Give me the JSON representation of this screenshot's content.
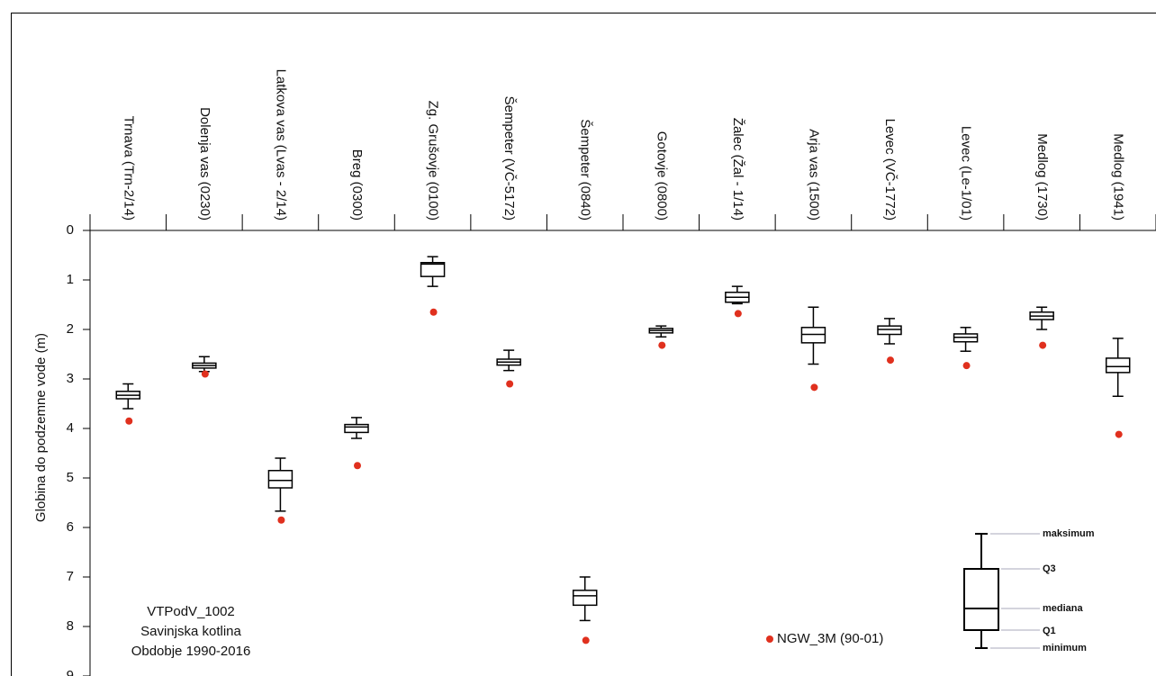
{
  "chart_data": {
    "type": "boxplot",
    "y_label": "Globina do podzemne vode (m)",
    "ylim": [
      0,
      9
    ],
    "yticks": [
      0,
      1,
      2,
      3,
      4,
      5,
      6,
      7,
      8,
      9
    ],
    "y_inverted": true,
    "categories": [
      "Trnava (Trn-2/14)",
      "Dolenja vas (0230)",
      "Latkova vas (Lvas - 2/14)",
      "Breg (0300)",
      "Zg. Grušovje (0100)",
      "Šempeter (VČ-5172)",
      "Šempeter (0840)",
      "Gotovje (0800)",
      "Žalec (Žal - 1/14)",
      "Arja vas (1500)",
      "Levec (VČ-1772)",
      "Levec (Le-1/01)",
      "Medlog (1730)",
      "Medlog (1941)"
    ],
    "boxes": [
      {
        "min": 3.1,
        "q1": 3.25,
        "median": 3.33,
        "q3": 3.4,
        "max": 3.6
      },
      {
        "min": 2.55,
        "q1": 2.68,
        "median": 2.73,
        "q3": 2.78,
        "max": 2.85
      },
      {
        "min": 4.6,
        "q1": 4.85,
        "median": 5.05,
        "q3": 5.2,
        "max": 5.67
      },
      {
        "min": 3.78,
        "q1": 3.92,
        "median": 3.97,
        "q3": 4.08,
        "max": 4.2
      },
      {
        "min": 0.53,
        "q1": 0.65,
        "median": 0.68,
        "q3": 0.93,
        "max": 1.13
      },
      {
        "min": 2.42,
        "q1": 2.6,
        "median": 2.66,
        "q3": 2.72,
        "max": 2.83
      },
      {
        "min": 7.0,
        "q1": 7.27,
        "median": 7.38,
        "q3": 7.57,
        "max": 7.88
      },
      {
        "min": 1.93,
        "q1": 1.98,
        "median": 2.02,
        "q3": 2.07,
        "max": 2.15
      },
      {
        "min": 1.13,
        "q1": 1.25,
        "median": 1.35,
        "q3": 1.45,
        "max": 1.48
      },
      {
        "min": 1.55,
        "q1": 1.96,
        "median": 2.1,
        "q3": 2.27,
        "max": 2.7
      },
      {
        "min": 1.78,
        "q1": 1.93,
        "median": 2.0,
        "q3": 2.1,
        "max": 2.29
      },
      {
        "min": 1.96,
        "q1": 2.09,
        "median": 2.16,
        "q3": 2.25,
        "max": 2.44
      },
      {
        "min": 1.55,
        "q1": 1.65,
        "median": 1.73,
        "q3": 1.8,
        "max": 2.0
      },
      {
        "min": 2.18,
        "q1": 2.58,
        "median": 2.75,
        "q3": 2.87,
        "max": 3.35
      }
    ],
    "points": {
      "name": "NGW_3M (90-01)",
      "color": "#e0301e",
      "values": [
        3.85,
        2.9,
        5.85,
        4.75,
        1.65,
        3.1,
        8.28,
        2.32,
        1.68,
        3.17,
        2.62,
        2.73,
        2.32,
        4.12
      ]
    },
    "annotation": [
      "VTPodV_1002",
      "Savinjska kotlina",
      "Obdobje 1990-2016"
    ],
    "legend_box_labels": [
      "maksimum",
      "Q3",
      "mediana",
      "Q1",
      "minimum"
    ]
  }
}
